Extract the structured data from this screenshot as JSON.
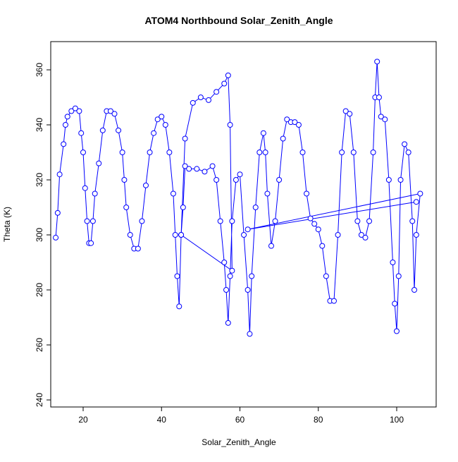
{
  "chart_data": {
    "type": "line",
    "title": "ATOM4 Northbound Solar_Zenith_Angle",
    "x_label": "Solar_Zenith_Angle",
    "y_label": "Theta (K)",
    "color": "#0000ff",
    "xlim": [
      11.73,
      110.07
    ],
    "ylim": [
      237.44,
      370.26
    ],
    "xticks": [
      20,
      40,
      60,
      80,
      100
    ],
    "yticks": [
      240,
      260,
      280,
      300,
      320,
      340,
      360
    ],
    "x": [
      13,
      13.5,
      14,
      15,
      15.5,
      16,
      17,
      18,
      19,
      19.5,
      20,
      20.5,
      21,
      21.5,
      22,
      22.5,
      23,
      24,
      25,
      26,
      27,
      28,
      29,
      30,
      30.5,
      31,
      32,
      33,
      34,
      35,
      36,
      37,
      38,
      39,
      40,
      41,
      42,
      43,
      43.5,
      44,
      44.5,
      45,
      46,
      48,
      50,
      52,
      54,
      56,
      57,
      57.5,
      58,
      45,
      45.5,
      46,
      47,
      49,
      51,
      53,
      54,
      55,
      56,
      56.5,
      57,
      57.5,
      58,
      59,
      60,
      61,
      62,
      62.5,
      63,
      64,
      65,
      66,
      66.5,
      67,
      68,
      69,
      70,
      71,
      72,
      73,
      74,
      75,
      76,
      77,
      78,
      79,
      80,
      81,
      82,
      83,
      84,
      85,
      86,
      87,
      88,
      89,
      90,
      91,
      92,
      93,
      94,
      94.5,
      95,
      95.5,
      96,
      97,
      98,
      99,
      99.5,
      100,
      100.5,
      101,
      102,
      103,
      104,
      104.5,
      105,
      106,
      62,
      105
    ],
    "values": [
      299,
      308,
      322,
      333,
      340,
      343,
      345,
      346,
      345,
      337,
      330,
      317,
      305,
      297,
      297,
      305,
      315,
      326,
      338,
      345,
      345,
      344,
      338,
      330,
      320,
      310,
      300,
      295,
      295,
      305,
      318,
      330,
      337,
      342,
      343,
      340,
      330,
      315,
      300,
      285,
      274,
      300,
      335,
      348,
      350,
      349,
      352,
      355,
      358,
      340,
      287,
      300,
      310,
      325,
      324,
      324,
      323,
      325,
      320,
      305,
      290,
      280,
      268,
      285,
      305,
      320,
      322,
      300,
      280,
      264,
      285,
      310,
      330,
      337,
      330,
      315,
      296,
      305,
      320,
      335,
      342,
      341,
      341,
      340,
      330,
      315,
      306,
      304,
      302,
      296,
      285,
      276,
      276,
      300,
      330,
      345,
      344,
      330,
      305,
      300,
      299,
      305,
      330,
      350,
      363,
      350,
      343,
      342,
      320,
      290,
      275,
      265,
      285,
      320,
      333,
      330,
      305,
      280,
      300,
      315,
      302,
      312
    ]
  }
}
